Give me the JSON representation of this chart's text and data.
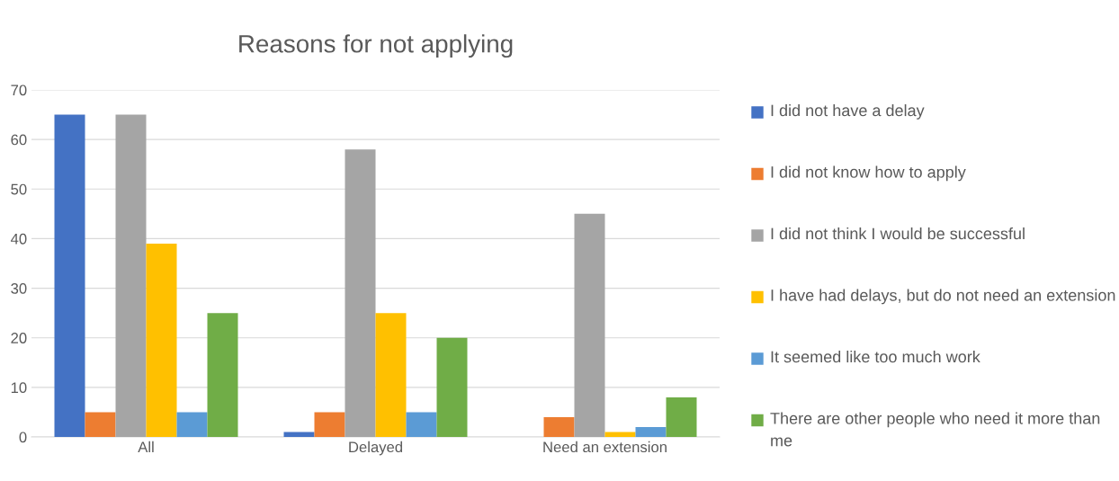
{
  "chart_data": {
    "type": "bar",
    "title": "Reasons for not applying",
    "categories": [
      "All",
      "Delayed",
      "Need an extension"
    ],
    "series": [
      {
        "name": "I did not have a delay",
        "color": "#4472c4",
        "values": [
          65,
          1,
          0
        ]
      },
      {
        "name": "I did not know how to apply",
        "color": "#ed7d31",
        "values": [
          5,
          5,
          4
        ]
      },
      {
        "name": "I did not think I would be successful",
        "color": "#a5a5a5",
        "values": [
          65,
          58,
          45
        ]
      },
      {
        "name": "I have had delays, but do not need an extension",
        "color": "#ffc000",
        "values": [
          39,
          25,
          1
        ]
      },
      {
        "name": "It seemed like too much work",
        "color": "#5b9bd5",
        "values": [
          5,
          5,
          2
        ]
      },
      {
        "name": "There are other people who need it more than me",
        "color": "#70ad47",
        "values": [
          25,
          20,
          8
        ]
      }
    ],
    "ylim": [
      0,
      70
    ],
    "yticks": [
      0,
      10,
      20,
      30,
      40,
      50,
      60,
      70
    ],
    "grid": "y",
    "legend": "right"
  }
}
